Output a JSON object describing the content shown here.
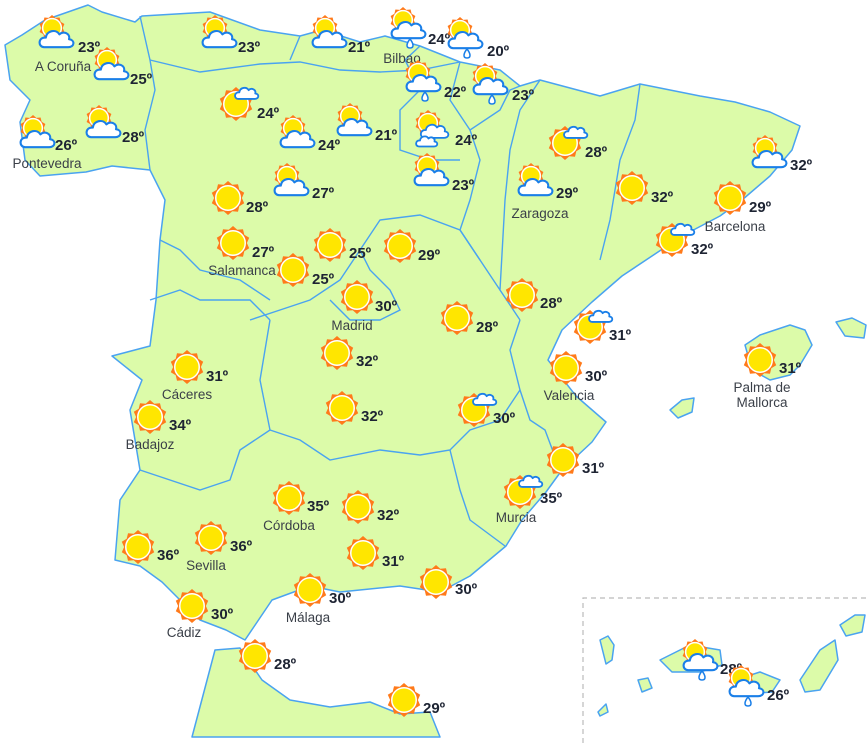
{
  "map": {
    "land_color": "#dcfba9",
    "border_color": "#4aa3f0",
    "sun_ray_color": "#ff7a1a",
    "sun_core_color": "#ffe600",
    "cloud_stroke_color": "#1a7fe8"
  },
  "stations": [
    {
      "city": "A Coruña",
      "temp": "23º",
      "icon": "sun-behind-cloud"
    },
    {
      "city": "",
      "temp": "25º",
      "icon": "sun-behind-cloud"
    },
    {
      "city": "Pontevedra",
      "temp": "26º",
      "icon": "sun-behind-cloud"
    },
    {
      "city": "",
      "temp": "28º",
      "icon": "sun-behind-cloud"
    },
    {
      "city": "",
      "temp": "23º",
      "icon": "sun-behind-cloud"
    },
    {
      "city": "",
      "temp": "21º",
      "icon": "sun-behind-cloud"
    },
    {
      "city": "Bilbao",
      "temp": "24º",
      "icon": "sun-cloud-rain"
    },
    {
      "city": "",
      "temp": "20º",
      "icon": "sun-cloud-rain"
    },
    {
      "city": "",
      "temp": "22º",
      "icon": "sun-cloud-rain"
    },
    {
      "city": "",
      "temp": "23º",
      "icon": "sun-cloud-rain"
    },
    {
      "city": "",
      "temp": "24º",
      "icon": "sun-small-cloud"
    },
    {
      "city": "",
      "temp": "24º",
      "icon": "sun-behind-cloud"
    },
    {
      "city": "",
      "temp": "21º",
      "icon": "sun-behind-cloud"
    },
    {
      "city": "",
      "temp": "24º",
      "icon": "sun-two-clouds"
    },
    {
      "city": "",
      "temp": "23º",
      "icon": "sun-behind-cloud"
    },
    {
      "city": "",
      "temp": "28º",
      "icon": "sun"
    },
    {
      "city": "",
      "temp": "27º",
      "icon": "sun-behind-cloud"
    },
    {
      "city": "Salamanca",
      "temp": "27º",
      "icon": "sun"
    },
    {
      "city": "",
      "temp": "25º",
      "icon": "sun"
    },
    {
      "city": "",
      "temp": "25º",
      "icon": "sun"
    },
    {
      "city": "",
      "temp": "29º",
      "icon": "sun"
    },
    {
      "city": "Madrid",
      "temp": "30º",
      "icon": "sun"
    },
    {
      "city": "",
      "temp": "28º",
      "icon": "sun-small-cloud"
    },
    {
      "city": "Zaragoza",
      "temp": "29º",
      "icon": "sun-behind-cloud"
    },
    {
      "city": "",
      "temp": "32º",
      "icon": "sun"
    },
    {
      "city": "Barcelona",
      "temp": "29º",
      "icon": "sun"
    },
    {
      "city": "",
      "temp": "32º",
      "icon": "sun-behind-cloud"
    },
    {
      "city": "",
      "temp": "32º",
      "icon": "sun-small-cloud"
    },
    {
      "city": "",
      "temp": "28º",
      "icon": "sun"
    },
    {
      "city": "",
      "temp": "28º",
      "icon": "sun"
    },
    {
      "city": "",
      "temp": "31º",
      "icon": "sun-small-cloud"
    },
    {
      "city": "Valencia",
      "temp": "30º",
      "icon": "sun"
    },
    {
      "city": "Palma de|Mallorca",
      "temp": "31º",
      "icon": "sun"
    },
    {
      "city": "",
      "temp": "32º",
      "icon": "sun"
    },
    {
      "city": "Cáceres",
      "temp": "31º",
      "icon": "sun"
    },
    {
      "city": "Badajoz",
      "temp": "34º",
      "icon": "sun"
    },
    {
      "city": "",
      "temp": "32º",
      "icon": "sun"
    },
    {
      "city": "",
      "temp": "30º",
      "icon": "sun-small-cloud"
    },
    {
      "city": "",
      "temp": "31º",
      "icon": "sun"
    },
    {
      "city": "Murcia",
      "temp": "35º",
      "icon": "sun-small-cloud"
    },
    {
      "city": "Córdoba",
      "temp": "35º",
      "icon": "sun"
    },
    {
      "city": "",
      "temp": "32º",
      "icon": "sun"
    },
    {
      "city": "Sevilla",
      "temp": "36º",
      "icon": "sun"
    },
    {
      "city": "",
      "temp": "36º",
      "icon": "sun"
    },
    {
      "city": "",
      "temp": "31º",
      "icon": "sun"
    },
    {
      "city": "",
      "temp": "30º",
      "icon": "sun"
    },
    {
      "city": "Málaga",
      "temp": "30º",
      "icon": "sun"
    },
    {
      "city": "Cádiz",
      "temp": "30º",
      "icon": "sun"
    },
    {
      "city": "",
      "temp": "28º",
      "icon": "sun"
    },
    {
      "city": "",
      "temp": "29º",
      "icon": "sun"
    },
    {
      "city": "",
      "temp": "28º",
      "icon": "sun-cloud-rain"
    },
    {
      "city": "",
      "temp": "26º",
      "icon": "sun-cloud-rain"
    }
  ]
}
